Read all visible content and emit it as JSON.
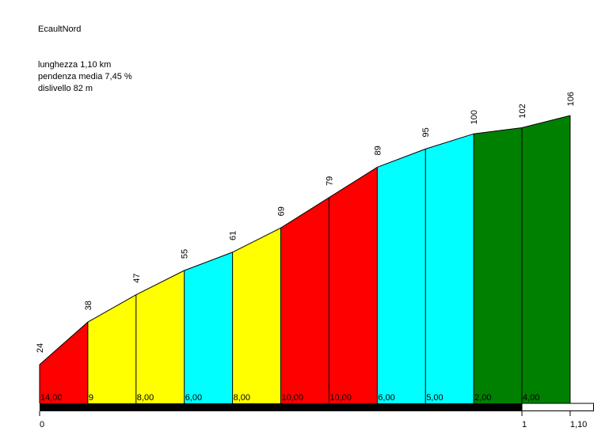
{
  "header": {
    "title": "EcaultNord",
    "length": "lunghezza 1,10 km",
    "avg_grade": "pendenza media 7,45 %",
    "elevation_gain": "dislivello 82 m"
  },
  "chart_data": {
    "type": "area",
    "title": "EcaultNord",
    "x_unit": "km",
    "x": [
      0,
      0.1,
      0.2,
      0.3,
      0.4,
      0.5,
      0.6,
      0.7,
      0.8,
      0.9,
      1.0,
      1.1
    ],
    "elevation": [
      24,
      38,
      47,
      55,
      61,
      69,
      79,
      89,
      95,
      100,
      102,
      106
    ],
    "segment_grades": [
      "14,00",
      "9",
      "8,00",
      "6,00",
      "8,00",
      "10,00",
      "10,00",
      "6,00",
      "5,00",
      "2,00",
      "4,00"
    ],
    "segment_colors": [
      "#ff0000",
      "#ffff00",
      "#ffff00",
      "#00ffff",
      "#ffff00",
      "#ff0000",
      "#ff0000",
      "#00ffff",
      "#00ffff",
      "#008000",
      "#008000"
    ],
    "x_ticks": [
      {
        "value": 0,
        "label": "0"
      },
      {
        "value": 1.0,
        "label": "1"
      },
      {
        "value": 1.1,
        "label": "1,10"
      }
    ],
    "ylim": [
      16,
      112
    ],
    "grid": false,
    "legend": "none"
  }
}
